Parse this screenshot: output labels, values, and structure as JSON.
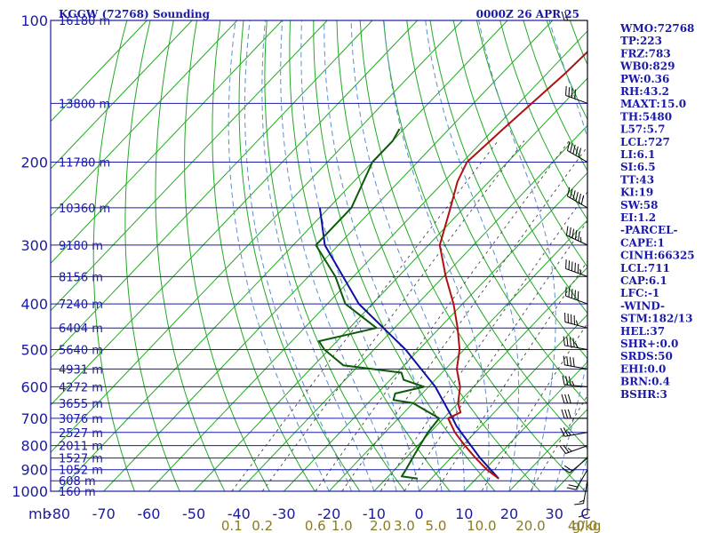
{
  "header": {
    "station": "KGGW (72768) Sounding",
    "time": "0000Z 26 APR 25"
  },
  "indices": [
    "WMO:72768",
    "TP:223",
    "FRZ:783",
    "WB0:829",
    "PW:0.36",
    "RH:43.2",
    "MAXT:15.0",
    "TH:5480",
    "L57:5.7",
    "LCL:727",
    "LI:6.1",
    "SI:6.5",
    "TT:43",
    "KI:19",
    "SW:58",
    "EI:1.2",
    "-PARCEL-",
    "CAPE:1",
    "CINH:66325",
    "LCL:711",
    "CAP:6.1",
    "LFC:-1",
    "-WIND-",
    "STM:182/13",
    "HEL:37",
    "SHR+:0.0",
    "SRDS:50",
    "EHI:0.0",
    "BRN:0.4",
    "BSHR:3"
  ],
  "colors": {
    "temperature": "#b01010",
    "dewpoint": "#0a5a0a",
    "parcel": "#1010a0",
    "isobar_isotherm": "#1a1aa6",
    "dry_adiabat": "#22aa22",
    "moist_adiabat": "#5b8fd0",
    "mixing_ratio": "#444444",
    "wind_barb": "#000000"
  },
  "chart_data": {
    "type": "line",
    "pressure_ticks": [
      "100",
      "200",
      "300",
      "400",
      "500",
      "600",
      "700",
      "800",
      "900",
      "1000"
    ],
    "pressure_unit_label": "mb",
    "temperature_ticks": [
      "-80",
      "-70",
      "-60",
      "-50",
      "-40",
      "-30",
      "-20",
      "-10",
      "0",
      "10",
      "20",
      "30",
      "C"
    ],
    "height_labels": [
      "16180 m",
      "13800 m",
      "11780 m",
      "10360 m",
      "9180 m",
      "8156 m",
      "7240 m",
      "6404 m",
      "5640 m",
      "4931 m",
      "4272 m",
      "3655 m",
      "3076 m",
      "2527 m",
      "2011 m",
      "1527 m",
      "1052 m",
      "608 m",
      "160 m"
    ],
    "height_pressures": [
      100,
      150,
      200,
      250,
      300,
      350,
      400,
      450,
      500,
      550,
      600,
      650,
      700,
      750,
      800,
      850,
      900,
      950,
      1000
    ],
    "mixing_ratio_labels": [
      "0.1",
      "0.2",
      "0.6",
      "1.0",
      "2.0",
      "3.0",
      "5.0",
      "10.0",
      "20.0",
      "40.0",
      "g/kg"
    ],
    "temperature_profile": {
      "pressure": [
        940,
        900,
        850,
        800,
        750,
        700,
        680,
        650,
        600,
        550,
        500,
        450,
        400,
        350,
        300,
        250,
        220,
        200,
        170,
        130,
        100
      ],
      "temperature": [
        15,
        10.5,
        5.5,
        0.5,
        -4.5,
        -9,
        -7.5,
        -10,
        -13,
        -17.5,
        -21,
        -26,
        -32,
        -39.5,
        -47.5,
        -53,
        -57,
        -59,
        -58,
        -56,
        -55
      ]
    },
    "dewpoint_profile": {
      "pressure": [
        940,
        930,
        900,
        850,
        800,
        750,
        700,
        650,
        640,
        620,
        600,
        580,
        560,
        540,
        500,
        480,
        450,
        400,
        350,
        300,
        250,
        200,
        180,
        170
      ],
      "dewpoint": [
        -3,
        -7,
        -7.5,
        -8.5,
        -9.5,
        -10.5,
        -11,
        -20,
        -25,
        -26,
        -21,
        -27,
        -29,
        -43.5,
        -51,
        -54,
        -44,
        -56,
        -64,
        -75,
        -75,
        -80,
        -80,
        -81
      ]
    },
    "parcel_profile": {
      "pressure": [
        940,
        850,
        727,
        700,
        600,
        500,
        400,
        300,
        250
      ],
      "temperature": [
        15,
        6.5,
        -5.5,
        -8,
        -18.5,
        -33,
        -53,
        -73,
        -82
      ]
    },
    "wind_profile": {
      "pressure": [
        1000,
        950,
        900,
        850,
        800,
        750,
        700,
        650,
        600,
        550,
        500,
        450,
        400,
        350,
        300,
        250,
        200,
        150,
        100
      ],
      "direction": [
        180,
        190,
        210,
        230,
        250,
        260,
        270,
        270,
        275,
        280,
        280,
        285,
        290,
        290,
        295,
        300,
        300,
        290,
        270
      ],
      "speed": [
        10,
        15,
        20,
        20,
        25,
        25,
        30,
        30,
        35,
        40,
        45,
        45,
        50,
        55,
        55,
        60,
        50,
        40,
        20
      ]
    }
  }
}
